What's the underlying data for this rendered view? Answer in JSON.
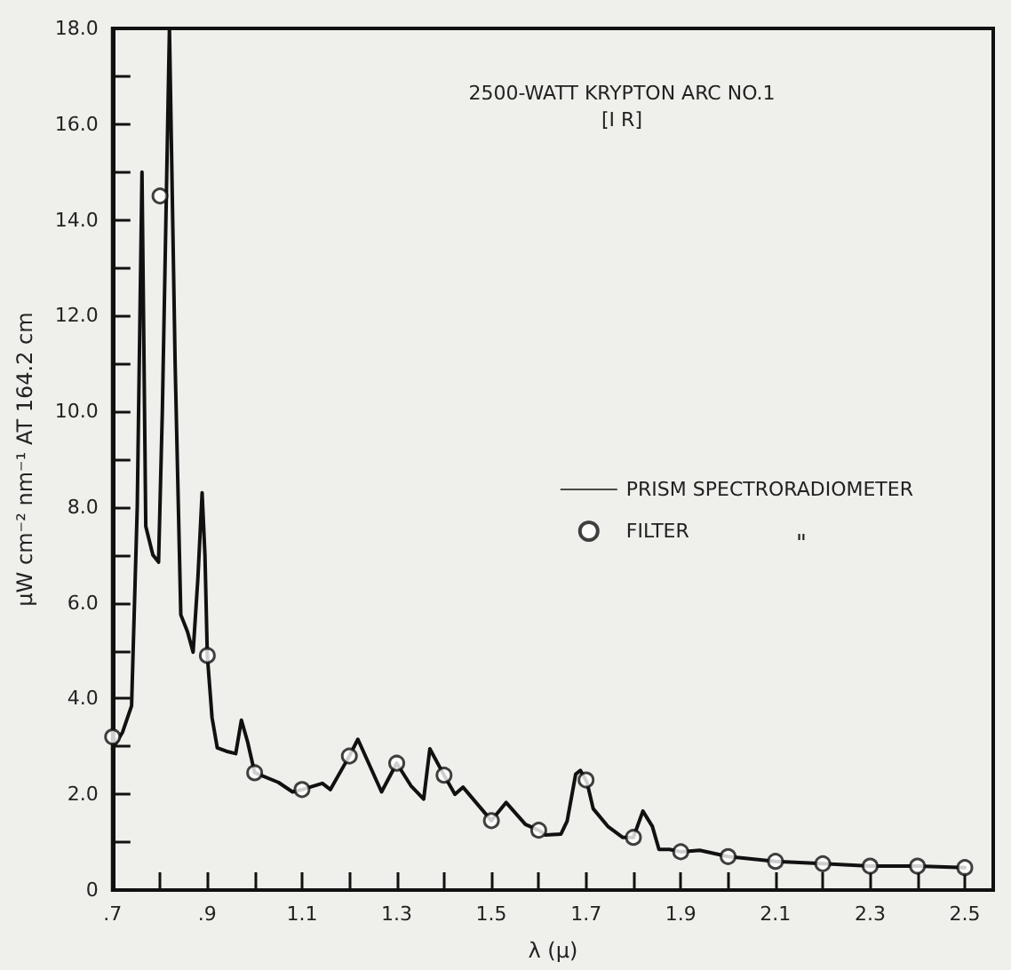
{
  "chart_data": {
    "type": "line",
    "title": "2500-WATT KRYPTON ARC NO.1",
    "subtitle": "[I R]",
    "xlabel": "λ (μ)",
    "ylabel": "μW cm⁻² nm⁻¹ AT 164.2 cm",
    "series": [
      {
        "name": "PRISM SPECTRORADIOMETER",
        "type": "line",
        "color": "#111111",
        "marker": "none",
        "line_style": "solid",
        "x": [
          0.7,
          0.721,
          0.74,
          0.752,
          0.762,
          0.77,
          0.785,
          0.797,
          0.805,
          0.82,
          0.832,
          0.844,
          0.858,
          0.87,
          0.88,
          0.889,
          0.895,
          0.9,
          0.91,
          0.921,
          0.94,
          0.96,
          0.972,
          0.985,
          1.0,
          1.05,
          1.08,
          1.1,
          1.143,
          1.16,
          1.2,
          1.218,
          1.268,
          1.3,
          1.33,
          1.357,
          1.37,
          1.4,
          1.423,
          1.44,
          1.5,
          1.531,
          1.572,
          1.6,
          1.615,
          1.647,
          1.66,
          1.678,
          1.688,
          1.702,
          1.715,
          1.746,
          1.777,
          1.8,
          1.82,
          1.84,
          1.854,
          1.876,
          1.9,
          1.94,
          2.0,
          2.1,
          2.2,
          2.3,
          2.4,
          2.5
        ],
        "values": [
          2.95,
          3.3,
          3.85,
          8.0,
          15.0,
          7.6,
          7.0,
          6.85,
          10.0,
          18.0,
          11.0,
          5.75,
          5.4,
          4.97,
          6.5,
          8.3,
          7.0,
          4.9,
          3.6,
          2.97,
          2.9,
          2.85,
          3.55,
          3.1,
          2.45,
          2.25,
          2.05,
          2.1,
          2.23,
          2.1,
          2.8,
          3.15,
          2.05,
          2.65,
          2.18,
          1.9,
          2.95,
          2.4,
          2.0,
          2.15,
          1.45,
          1.83,
          1.37,
          1.25,
          1.15,
          1.17,
          1.44,
          2.42,
          2.5,
          2.25,
          1.7,
          1.33,
          1.1,
          1.1,
          1.65,
          1.33,
          0.85,
          0.85,
          0.8,
          0.83,
          0.7,
          0.6,
          0.55,
          0.5,
          0.5,
          0.47
        ]
      },
      {
        "name": "FILTER",
        "type": "scatter",
        "color": "#111111",
        "marker": "circle",
        "x": [
          0.7,
          0.8,
          0.9,
          1.0,
          1.1,
          1.2,
          1.3,
          1.4,
          1.5,
          1.6,
          1.7,
          1.8,
          1.9,
          2.0,
          2.1,
          2.2,
          2.3,
          2.4,
          2.5
        ],
        "values": [
          3.2,
          14.5,
          4.9,
          2.45,
          2.1,
          2.8,
          2.65,
          2.4,
          1.45,
          1.25,
          2.3,
          1.1,
          0.8,
          0.7,
          0.6,
          0.55,
          0.5,
          0.5,
          0.47
        ]
      }
    ],
    "annotations": [
      "\""
    ],
    "xlim": [
      0.7,
      2.56
    ],
    "ylim": [
      0,
      18
    ],
    "xticks": [
      {
        "value": 0.7,
        "label": ".7"
      },
      {
        "value": 0.8,
        "label": null
      },
      {
        "value": 0.9,
        "label": ".9"
      },
      {
        "value": 1.0,
        "label": null
      },
      {
        "value": 1.1,
        "label": "1.1"
      },
      {
        "value": 1.2,
        "label": null
      },
      {
        "value": 1.3,
        "label": "1.3"
      },
      {
        "value": 1.4,
        "label": null
      },
      {
        "value": 1.5,
        "label": "1.5"
      },
      {
        "value": 1.6,
        "label": null
      },
      {
        "value": 1.7,
        "label": "1.7"
      },
      {
        "value": 1.8,
        "label": null
      },
      {
        "value": 1.9,
        "label": "1.9"
      },
      {
        "value": 2.0,
        "label": null
      },
      {
        "value": 2.1,
        "label": "2.1"
      },
      {
        "value": 2.2,
        "label": null
      },
      {
        "value": 2.3,
        "label": "2.3"
      },
      {
        "value": 2.4,
        "label": null
      },
      {
        "value": 2.5,
        "label": "2.5"
      }
    ],
    "yticks": [
      0,
      {
        "value": 1,
        "label": null
      },
      {
        "value": 2,
        "label": "2.0"
      },
      {
        "value": 3,
        "label": null
      },
      {
        "value": 4,
        "label": "4.0"
      },
      {
        "value": 5,
        "label": null
      },
      {
        "value": 6,
        "label": "6.0"
      },
      {
        "value": 7,
        "label": null
      },
      {
        "value": 8,
        "label": "8.0"
      },
      {
        "value": 9,
        "label": null
      },
      {
        "value": 10,
        "label": "10.0"
      },
      {
        "value": 11,
        "label": null
      },
      {
        "value": 12,
        "label": "12.0"
      },
      {
        "value": 13,
        "label": null
      },
      {
        "value": 14,
        "label": "14.0"
      },
      {
        "value": 15,
        "label": null
      },
      {
        "value": 16,
        "label": "16.0"
      },
      {
        "value": 17,
        "label": null
      },
      {
        "value": 18,
        "label": "18.0"
      }
    ],
    "legend": "right",
    "grid": false
  }
}
